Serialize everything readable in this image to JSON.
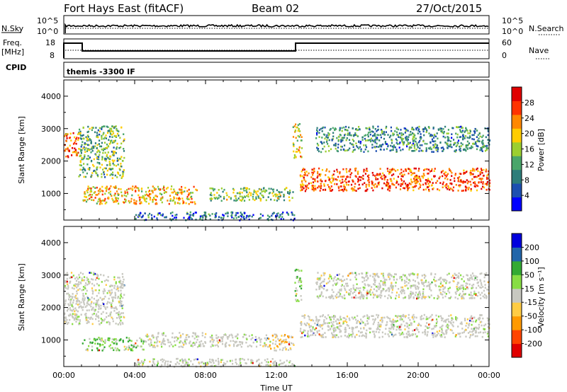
{
  "header": {
    "station": "Fort Hays East (fitACF)",
    "beam": "Beam 02",
    "date": "27/Oct/2015"
  },
  "top_panels": {
    "nsky_label": "N.Sky",
    "nsky_ticks": [
      "10^5",
      "10^0"
    ],
    "nsearch_label": "N.Search",
    "nsearch_ticks": [
      "10^5",
      "10^0"
    ],
    "freq_label": "Freq.",
    "freq_unit": "[MHz]",
    "freq_ticks": [
      "18",
      "8"
    ],
    "nave_label": "Nave",
    "nave_ticks": [
      "60",
      "0"
    ],
    "cpid_label": "CPID",
    "cpid_value": "themis -3300 IF"
  },
  "chart_data": [
    {
      "type": "heatmap",
      "name": "power",
      "ylabel": "Slant Range [km]",
      "xlabel": "Time UT",
      "x_ticks": [
        "00:00",
        "04:00",
        "08:00",
        "12:00",
        "16:00",
        "20:00",
        "00:00"
      ],
      "y_ticks": [
        "1000",
        "2000",
        "3000",
        "4000"
      ],
      "xlim_hours": [
        0,
        24
      ],
      "ylim_km": [
        180,
        4500
      ],
      "colorbar": {
        "label": "Power [dB]",
        "ticks": [
          "28",
          "24",
          "20",
          "16",
          "12",
          "8",
          "4"
        ],
        "colors": [
          "#0000ff",
          "#1d4fb0",
          "#2e7d7a",
          "#4aa66a",
          "#9ccf30",
          "#ffcc00",
          "#ff8800",
          "#ff3300",
          "#e00000"
        ]
      },
      "bands": [
        {
          "t0": 0.0,
          "t1": 0.8,
          "r0": 2100,
          "r1": 2900,
          "level": 0.8
        },
        {
          "t0": 0.8,
          "t1": 3.4,
          "r0": 1500,
          "r1": 3100,
          "level": 0.4
        },
        {
          "t0": 1.0,
          "t1": 7.5,
          "r0": 700,
          "r1": 1250,
          "level": 0.65
        },
        {
          "t0": 8.2,
          "t1": 12.9,
          "r0": 800,
          "r1": 1200,
          "level": 0.45
        },
        {
          "t0": 12.9,
          "t1": 13.4,
          "r0": 2100,
          "r1": 3200,
          "level": 0.6
        },
        {
          "t0": 13.3,
          "t1": 24.0,
          "r0": 1100,
          "r1": 1800,
          "level": 0.85
        },
        {
          "t0": 14.2,
          "t1": 24.0,
          "r0": 2300,
          "r1": 3100,
          "level": 0.3
        },
        {
          "t0": 4.0,
          "t1": 13.0,
          "r0": 200,
          "r1": 450,
          "level": 0.2
        }
      ]
    },
    {
      "type": "heatmap",
      "name": "velocity",
      "ylabel": "Slant Range [km]",
      "xlabel": "Time UT",
      "x_ticks": [
        "00:00",
        "04:00",
        "08:00",
        "12:00",
        "16:00",
        "20:00",
        "00:00"
      ],
      "y_ticks": [
        "1000",
        "2000",
        "3000",
        "4000"
      ],
      "xlim_hours": [
        0,
        24
      ],
      "ylim_km": [
        180,
        4500
      ],
      "colorbar": {
        "label": "Velocity [m s⁻¹]",
        "ticks": [
          "200",
          "100",
          "50",
          "15",
          "-15",
          "-50",
          "-100",
          "-200"
        ],
        "colors": [
          "#e00000",
          "#ff4400",
          "#ff9900",
          "#ffcc44",
          "#c8c8c0",
          "#88dd44",
          "#33aa33",
          "#2266aa",
          "#0000dd"
        ]
      },
      "bands": [
        {
          "t0": 0.0,
          "t1": 3.4,
          "r0": 1500,
          "r1": 3100,
          "level": 0.45
        },
        {
          "t0": 1.0,
          "t1": 4.5,
          "r0": 700,
          "r1": 1100,
          "level": 0.65
        },
        {
          "t0": 4.5,
          "t1": 8.0,
          "r0": 800,
          "r1": 1250,
          "level": 0.45
        },
        {
          "t0": 8.2,
          "t1": 11.5,
          "r0": 800,
          "r1": 1200,
          "level": 0.45
        },
        {
          "t0": 11.5,
          "t1": 13.0,
          "r0": 700,
          "r1": 1200,
          "level": 0.3
        },
        {
          "t0": 13.0,
          "t1": 13.4,
          "r0": 2200,
          "r1": 3200,
          "level": 0.65
        },
        {
          "t0": 13.3,
          "t1": 24.0,
          "r0": 1100,
          "r1": 1800,
          "level": 0.45
        },
        {
          "t0": 14.2,
          "t1": 24.0,
          "r0": 2300,
          "r1": 3100,
          "level": 0.45
        },
        {
          "t0": 4.0,
          "t1": 13.0,
          "r0": 200,
          "r1": 450,
          "level": 0.35
        }
      ]
    }
  ]
}
